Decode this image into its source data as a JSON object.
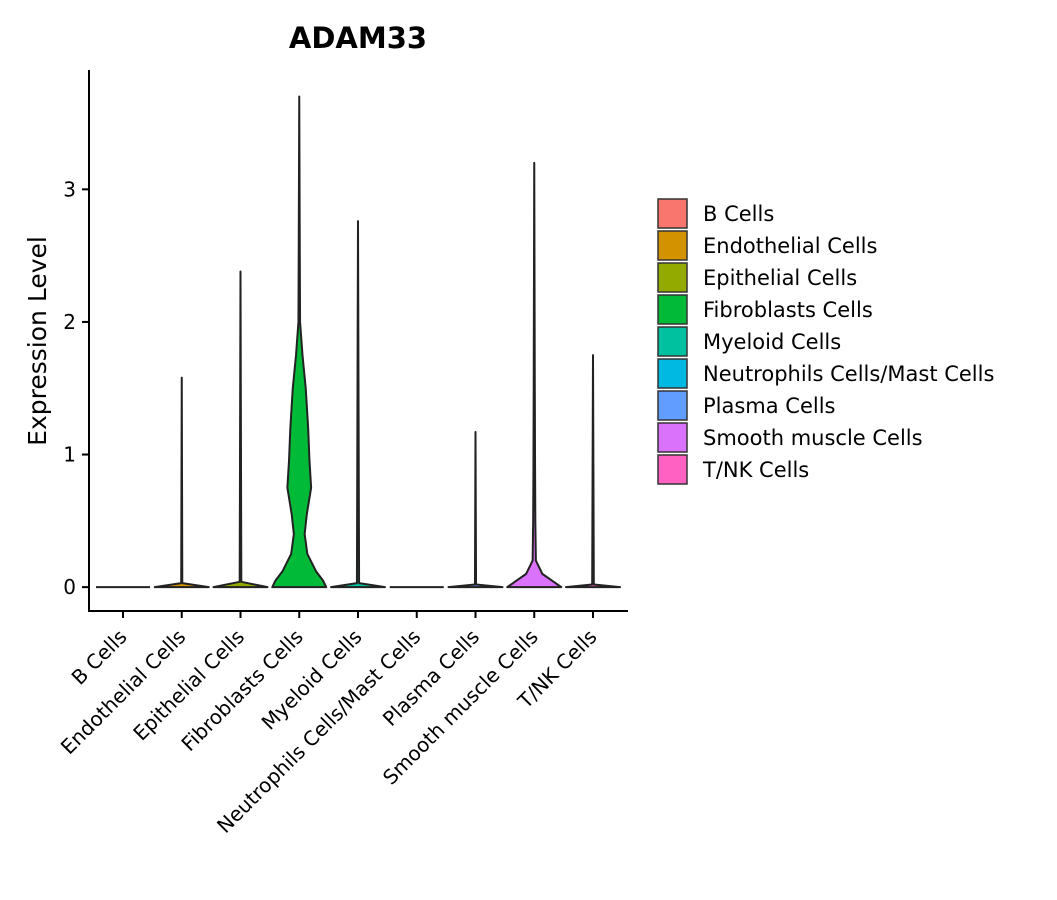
{
  "chart_data": {
    "type": "violin",
    "title": "ADAM33",
    "xlabel": "",
    "ylabel": "Expression Level",
    "ylim": [
      -0.18,
      3.9
    ],
    "yticks": [
      0,
      1,
      2,
      3
    ],
    "grid": false,
    "legend_position": "right",
    "categories": [
      "B Cells",
      "Endothelial Cells",
      "Epithelial Cells",
      "Fibroblasts Cells",
      "Myeloid Cells",
      "Neutrophils Cells/Mast Cells",
      "Plasma Cells",
      "Smooth muscle Cells",
      "T/NK Cells"
    ],
    "colors": [
      "#F8766D",
      "#D39200",
      "#93AA00",
      "#00BA38",
      "#00C19F",
      "#00B9E3",
      "#619CFF",
      "#DB72FB",
      "#FF61C3"
    ],
    "series": [
      {
        "name": "B Cells",
        "max": 0,
        "density": [
          [
            0,
            1.0
          ]
        ]
      },
      {
        "name": "Endothelial Cells",
        "max": 1.58,
        "density": [
          [
            0,
            1.0
          ],
          [
            0.03,
            0.02
          ],
          [
            1.58,
            0.0
          ]
        ]
      },
      {
        "name": "Epithelial Cells",
        "max": 2.38,
        "density": [
          [
            0,
            1.0
          ],
          [
            0.04,
            0.03
          ],
          [
            2.38,
            0.0
          ]
        ]
      },
      {
        "name": "Fibroblasts Cells",
        "max": 3.7,
        "density": [
          [
            0,
            1.0
          ],
          [
            0.05,
            0.88
          ],
          [
            0.12,
            0.62
          ],
          [
            0.25,
            0.3
          ],
          [
            0.4,
            0.2
          ],
          [
            0.55,
            0.28
          ],
          [
            0.75,
            0.44
          ],
          [
            0.95,
            0.38
          ],
          [
            1.2,
            0.33
          ],
          [
            1.5,
            0.24
          ],
          [
            1.75,
            0.12
          ],
          [
            2.0,
            0.03
          ],
          [
            2.5,
            0.02
          ],
          [
            3.7,
            0.0
          ]
        ]
      },
      {
        "name": "Myeloid Cells",
        "max": 2.76,
        "density": [
          [
            0,
            1.0
          ],
          [
            0.03,
            0.04
          ],
          [
            2.76,
            0.0
          ]
        ]
      },
      {
        "name": "Neutrophils Cells/Mast Cells",
        "max": 0,
        "density": [
          [
            0,
            1.0
          ]
        ]
      },
      {
        "name": "Plasma Cells",
        "max": 1.17,
        "density": [
          [
            0,
            1.0
          ],
          [
            0.02,
            0.02
          ],
          [
            1.17,
            0.0
          ]
        ]
      },
      {
        "name": "Smooth muscle Cells",
        "max": 3.2,
        "density": [
          [
            0,
            1.0
          ],
          [
            0.04,
            0.72
          ],
          [
            0.1,
            0.3
          ],
          [
            0.2,
            0.06
          ],
          [
            0.5,
            0.04
          ],
          [
            0.9,
            0.03
          ],
          [
            1.5,
            0.02
          ],
          [
            3.2,
            0.0
          ]
        ]
      },
      {
        "name": "T/NK Cells",
        "max": 1.75,
        "density": [
          [
            0,
            1.0
          ],
          [
            0.02,
            0.03
          ],
          [
            1.75,
            0.0
          ]
        ]
      }
    ]
  }
}
